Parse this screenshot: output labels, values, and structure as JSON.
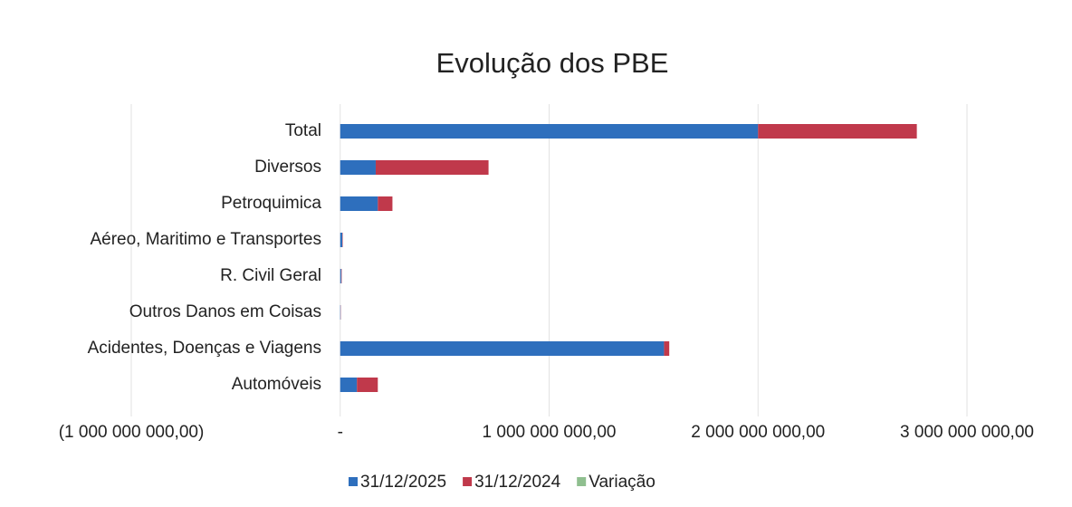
{
  "chart_data": {
    "type": "barh-stacked",
    "title": "Evolução dos PBE",
    "categories": [
      "Total",
      "Diversos",
      "Petroquimica",
      "Aéreo, Maritimo e Transportes",
      "R. Civil Geral",
      "Outros Danos em Coisas",
      "Acidentes, Doenças e Viagens",
      "Automóveis"
    ],
    "series": [
      {
        "name": "31/12/2025",
        "color": "#2e6fbd",
        "values": [
          2000000000,
          170000000,
          180000000,
          10000000,
          5000000,
          2000000,
          1550000000,
          80000000
        ]
      },
      {
        "name": "31/12/2024",
        "color": "#c0394b",
        "values": [
          760000000,
          540000000,
          70000000,
          2000000,
          2000000,
          1000000,
          25000000,
          100000000
        ]
      },
      {
        "name": "Variação",
        "color": "#8fbf8f",
        "values": [
          0,
          0,
          0,
          0,
          0,
          0,
          0,
          0
        ]
      }
    ],
    "xlim": [
      -1000000000,
      3000000000
    ],
    "xticks": [
      {
        "value": -1000000000,
        "label": "(1 000 000 000,00)"
      },
      {
        "value": 0,
        "label": "-"
      },
      {
        "value": 1000000000,
        "label": "1 000 000 000,00"
      },
      {
        "value": 2000000000,
        "label": "2 000 000 000,00"
      },
      {
        "value": 3000000000,
        "label": "3 000 000 000,00"
      }
    ],
    "grid": true,
    "legend": "bottom"
  }
}
